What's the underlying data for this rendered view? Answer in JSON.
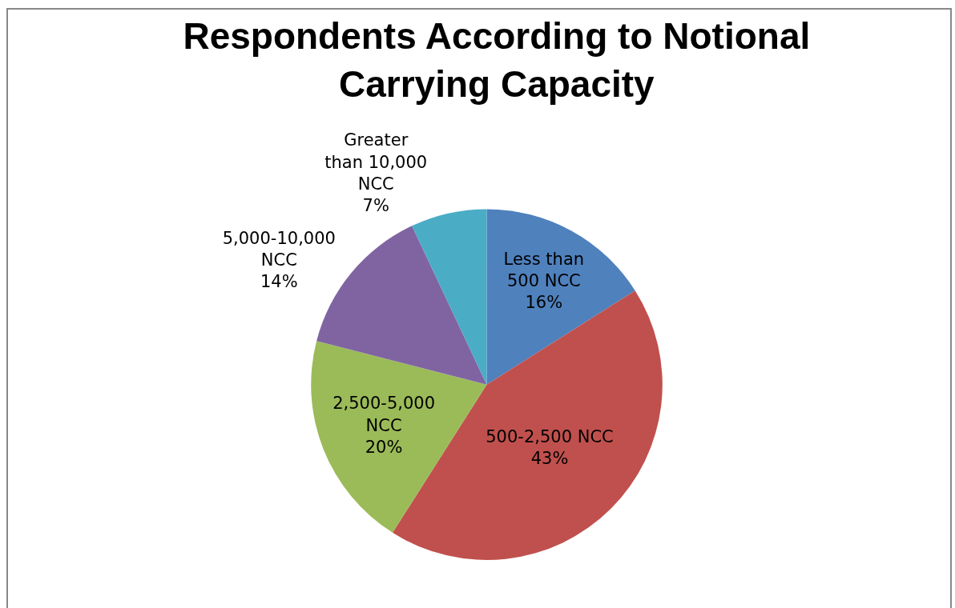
{
  "chart_data": {
    "type": "pie",
    "title": "Respondents According to Notional Carrying Capacity",
    "categories": [
      "Less than 500 NCC",
      "500-2,500 NCC",
      "2,500-5,000 NCC",
      "5,000-10,000 NCC",
      "Greater than 10,000 NCC"
    ],
    "values": [
      16,
      43,
      20,
      14,
      7
    ],
    "value_labels": [
      "16%",
      "43%",
      "20%",
      "14%",
      "7%"
    ],
    "colors": [
      "#4f81bd",
      "#c0504d",
      "#9bbb59",
      "#8064a2",
      "#4bacc6"
    ],
    "legend": false
  }
}
